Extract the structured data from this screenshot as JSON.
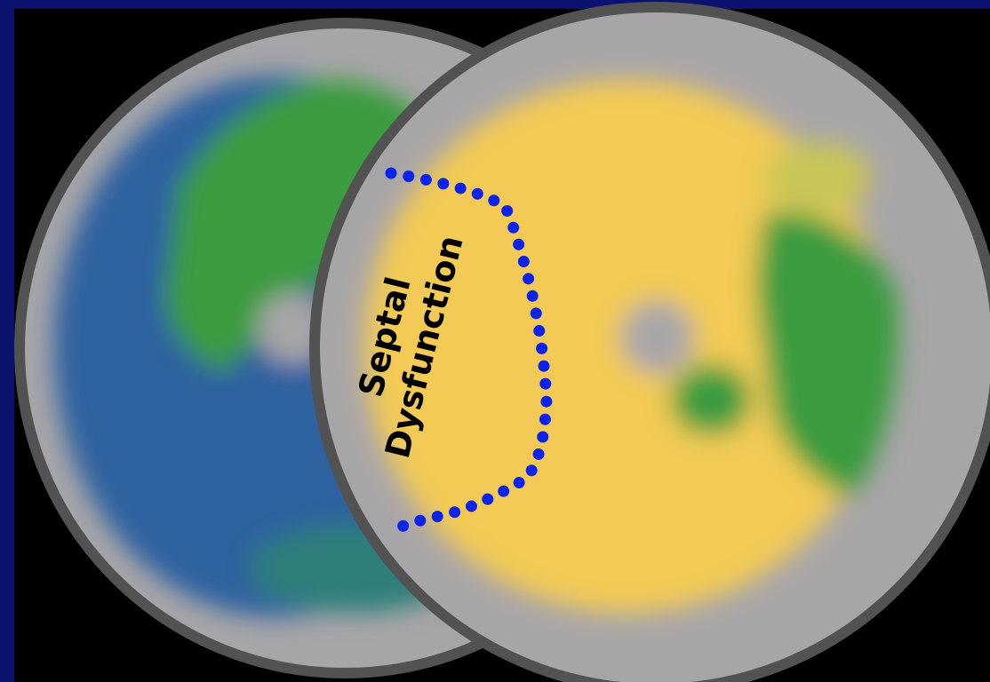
{
  "annotation": {
    "lines": [
      "Septal",
      "Dysfunction"
    ]
  }
}
